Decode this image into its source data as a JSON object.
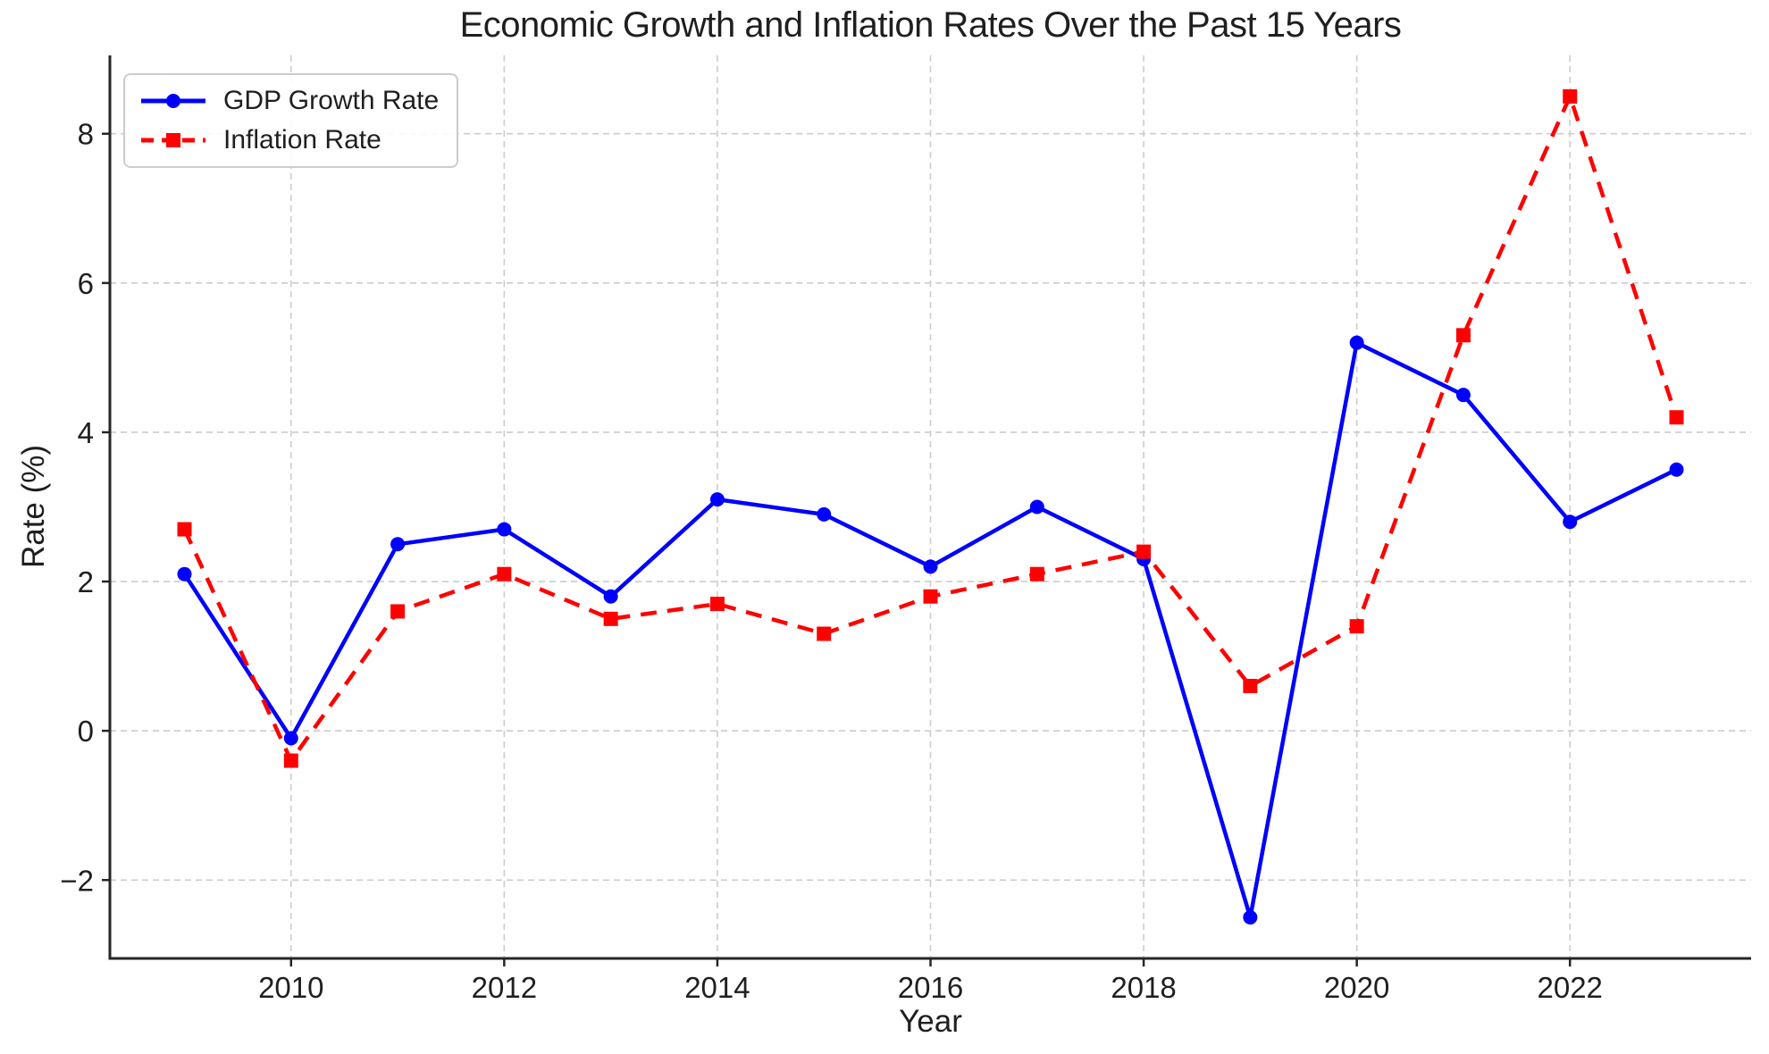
{
  "chart_data": {
    "type": "line",
    "title": "Economic Growth and Inflation Rates Over the Past 15 Years",
    "xlabel": "Year",
    "ylabel": "Rate (%)",
    "x": [
      2009,
      2010,
      2011,
      2012,
      2013,
      2014,
      2015,
      2016,
      2017,
      2018,
      2019,
      2020,
      2021,
      2022,
      2023
    ],
    "series": [
      {
        "name": "GDP Growth Rate",
        "values": [
          2.1,
          -0.1,
          2.5,
          2.7,
          1.8,
          3.1,
          2.9,
          2.2,
          3.0,
          2.3,
          -2.5,
          5.2,
          4.5,
          2.8,
          3.5
        ],
        "color": "#0000ff",
        "line_style": "solid",
        "marker": "circle"
      },
      {
        "name": "Inflation Rate",
        "values": [
          2.7,
          -0.4,
          1.6,
          2.1,
          1.5,
          1.7,
          1.3,
          1.8,
          2.1,
          2.4,
          0.6,
          1.4,
          5.3,
          8.5,
          4.2
        ],
        "color": "#ff0000",
        "line_style": "dashed",
        "marker": "square"
      }
    ],
    "xlim": [
      2008.3,
      2023.7
    ],
    "ylim": [
      -3.05,
      9.05
    ],
    "xticks": [
      2010,
      2012,
      2014,
      2016,
      2018,
      2020,
      2022
    ],
    "xtick_labels": [
      "2010",
      "2012",
      "2014",
      "2016",
      "2018",
      "2020",
      "2022"
    ],
    "yticks": [
      -2,
      0,
      2,
      4,
      6,
      8
    ],
    "ytick_labels": [
      "−2",
      "0",
      "2",
      "4",
      "6",
      "8"
    ],
    "grid": true,
    "grid_color": "#cccccc",
    "spine_color": "#262626",
    "text_color": "#1f1f1f",
    "legend_position": "upper left"
  }
}
